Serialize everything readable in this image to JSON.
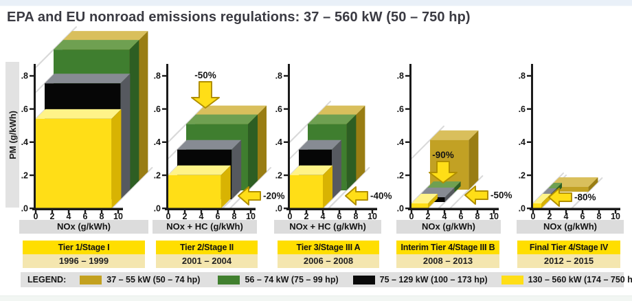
{
  "page": {
    "title": "EPA and EU nonroad emissions regulations: 37 – 560 kW (50 – 750 hp)"
  },
  "y_axis": {
    "label": "PM (g/kWh)",
    "ticks": [
      ".0",
      ".2",
      ".4",
      ".6",
      ".8"
    ]
  },
  "legend": {
    "label": "LEGEND:",
    "items": [
      {
        "label": "37 – 55 kW (50 – 74 hp)",
        "color": "#C3A120"
      },
      {
        "label": "56 – 74 kW (75 – 99 hp)",
        "color": "#41802F"
      },
      {
        "label": "75 – 129 kW (100 – 173 hp)",
        "color": "#0A0A0A"
      },
      {
        "label": "130 – 560 kW (174 – 750 hp)",
        "color": "#FFDE17"
      }
    ]
  },
  "colors": {
    "olive": {
      "front": "#C2A124",
      "top": "#D9BF5C",
      "side": "#997D13"
    },
    "green": {
      "front": "#3F7E2F",
      "top": "#6FA051",
      "side": "#2D5E23"
    },
    "black": {
      "front": "#060606",
      "top": "#878B93",
      "side": "#56595F"
    },
    "yellow": {
      "front": "#FFDE17",
      "top": "#FFF388",
      "side": "#D8B303"
    },
    "arrow_fill": "#FFDE17",
    "arrow_stroke": "#B18F00",
    "axis": "#1A1A1A",
    "diagonal": "#D9D9D9",
    "band_bright": "#FFDE00",
    "band_pale": "#F4E6AF"
  },
  "panels": [
    {
      "tier": "Tier 1/Stage I",
      "years": "1996 – 1999",
      "x_label": "NOx (g/kWh)",
      "x_ticks": [
        "0",
        "2",
        "4",
        "6",
        "8",
        "10"
      ],
      "arrows": []
    },
    {
      "tier": "Tier 2/Stage II",
      "years": "2001 – 2004",
      "x_label": "NOx + HC (g/kWh)",
      "x_ticks": [
        "0",
        "2",
        "4",
        "6",
        "8",
        "10"
      ],
      "arrows": [
        {
          "text": "-50%",
          "dir": "down"
        },
        {
          "text": "-20%",
          "dir": "left"
        }
      ]
    },
    {
      "tier": "Tier 3/Stage III A",
      "years": "2006 – 2008",
      "x_label": "NOx + HC (g/kWh)",
      "x_ticks": [
        "0",
        "2",
        "4",
        "6",
        "8",
        "10"
      ],
      "arrows": [
        {
          "text": "-40%",
          "dir": "left"
        }
      ]
    },
    {
      "tier": "Interim Tier 4/Stage III B",
      "years": "2008 – 2013",
      "x_label": "NOx (g/kWh)",
      "x_ticks": [
        "0",
        "2",
        "4",
        "6",
        "8",
        "10"
      ],
      "arrows": [
        {
          "text": "-90%",
          "dir": "down"
        },
        {
          "text": "-50%",
          "dir": "left"
        }
      ]
    },
    {
      "tier": "Final Tier 4/Stage IV",
      "years": "2012 – 2015",
      "x_label": "NOx (g/kWh)",
      "x_ticks": [
        "0",
        "2",
        "4",
        "6",
        "8",
        "10"
      ],
      "arrows": [
        {
          "text": "-80%",
          "dir": "left"
        }
      ]
    }
  ],
  "chart_data": {
    "type": "bar",
    "title": "EPA and EU nonroad emissions regulations: 37 – 560 kW (50 – 750 hp)",
    "xlabel": "NOx or NOx + HC (g/kWh)",
    "ylabel": "PM (g/kWh)",
    "xlim": [
      0,
      10
    ],
    "ylim": [
      0,
      0.8
    ],
    "panels": [
      {
        "stage": "Tier 1/Stage I",
        "years": "1996 – 1999",
        "x_axis": "NOx (g/kWh)",
        "limits": [
          {
            "category": "37 – 55 kW (50 – 74 hp)",
            "color": "olive",
            "nox": 9.2,
            "pm": 0.85
          },
          {
            "category": "56 – 74 kW (75 – 99 hp)",
            "color": "green",
            "nox": 9.2,
            "pm": 0.85
          },
          {
            "category": "75 – 129 kW (100 – 173 hp)",
            "color": "black",
            "nox": 9.2,
            "pm": 0.7
          },
          {
            "category": "130 – 560 kW (174 – 750 hp)",
            "color": "yellow",
            "nox": 9.2,
            "pm": 0.54
          }
        ]
      },
      {
        "stage": "Tier 2/Stage II",
        "years": "2001 – 2004",
        "x_axis": "NOx + HC (g/kWh)",
        "limits": [
          {
            "category": "37 – 55 kW (50 – 74 hp)",
            "color": "olive",
            "nox": 7.5,
            "pm": 0.4
          },
          {
            "category": "56 – 74 kW (75 – 99 hp)",
            "color": "green",
            "nox": 7.5,
            "pm": 0.4
          },
          {
            "category": "75 – 129 kW (100 – 173 hp)",
            "color": "black",
            "nox": 6.6,
            "pm": 0.3
          },
          {
            "category": "130 – 560 kW (174 – 750 hp)",
            "color": "yellow",
            "nox": 6.4,
            "pm": 0.2
          }
        ]
      },
      {
        "stage": "Tier 3/Stage III A",
        "years": "2006 – 2008",
        "x_axis": "NOx + HC (g/kWh)",
        "limits": [
          {
            "category": "37 – 55 kW (50 – 74 hp)",
            "color": "olive",
            "nox": 4.7,
            "pm": 0.4
          },
          {
            "category": "56 – 74 kW (75 – 99 hp)",
            "color": "green",
            "nox": 4.7,
            "pm": 0.4
          },
          {
            "category": "75 – 129 kW (100 – 173 hp)",
            "color": "black",
            "nox": 4.0,
            "pm": 0.3
          },
          {
            "category": "130 – 560 kW (174 – 750 hp)",
            "color": "yellow",
            "nox": 4.0,
            "pm": 0.2
          }
        ]
      },
      {
        "stage": "Interim Tier 4/Stage III B",
        "years": "2008 – 2013",
        "x_axis": "NOx (g/kWh)",
        "limits": [
          {
            "category": "37 – 55 kW (50 – 74 hp)",
            "color": "olive",
            "nox": 4.7,
            "pm": 0.3
          },
          {
            "category": "56 – 74 kW (75 – 99 hp)",
            "color": "green",
            "nox": 3.3,
            "pm": 0.025
          },
          {
            "category": "75 – 129 kW (100 – 173 hp)",
            "color": "black",
            "nox": 3.3,
            "pm": 0.025
          },
          {
            "category": "130 – 560 kW (174 – 750 hp)",
            "color": "yellow",
            "nox": 2.0,
            "pm": 0.025
          }
        ]
      },
      {
        "stage": "Final Tier 4/Stage IV",
        "years": "2012 – 2015",
        "x_axis": "NOx (g/kWh)",
        "limits": [
          {
            "category": "37 – 55 kW (50 – 74 hp)",
            "color": "olive",
            "nox": 4.7,
            "pm": 0.025
          },
          {
            "category": "56 – 74 kW (75 – 99 hp)",
            "color": "green",
            "nox": 0.4,
            "pm": 0.025
          },
          {
            "category": "75 – 129 kW (100 – 173 hp)",
            "color": "black",
            "nox": 0.4,
            "pm": 0.025
          },
          {
            "category": "130 – 560 kW (174 – 750 hp)",
            "color": "yellow",
            "nox": 0.4,
            "pm": 0.025
          }
        ]
      }
    ]
  }
}
